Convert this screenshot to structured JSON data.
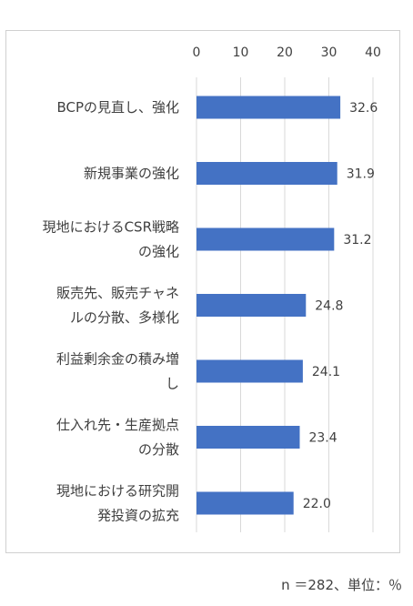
{
  "chart_data": {
    "type": "bar",
    "orientation": "horizontal",
    "categories": [
      [
        "BCPの見直し、強化"
      ],
      [
        "新規事業の強化"
      ],
      [
        "現地におけるCSR戦略",
        "の強化"
      ],
      [
        "販売先、販売チャネ",
        "ルの分散、多様化"
      ],
      [
        "利益剰余金の積み増",
        "し"
      ],
      [
        "仕入れ先・生産拠点",
        "の分散"
      ],
      [
        "現地における研究開",
        "発投資の拡充"
      ]
    ],
    "values": [
      32.6,
      31.9,
      31.2,
      24.8,
      24.1,
      23.4,
      22.0
    ],
    "data_labels": [
      "32.6",
      "31.9",
      "31.2",
      "24.8",
      "24.1",
      "23.4",
      "22.0"
    ],
    "xlim": [
      0,
      40
    ],
    "ticks": [
      0,
      10,
      20,
      30,
      40
    ],
    "tick_labels": [
      "0",
      "10",
      "20",
      "30",
      "40"
    ],
    "axis_position": "top",
    "grid": true,
    "bar_color": "#4472c4"
  },
  "footnote": "n ＝282、単位：％"
}
